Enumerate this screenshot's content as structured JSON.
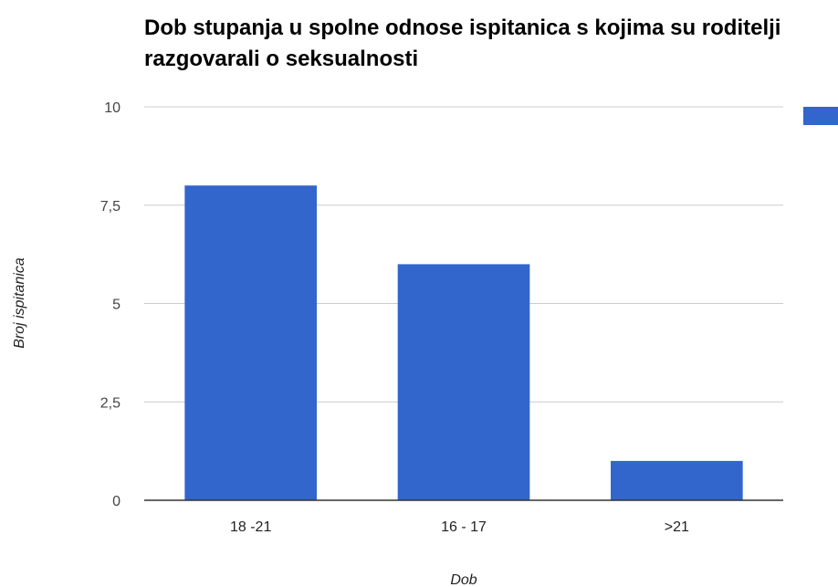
{
  "chart_data": {
    "type": "bar",
    "title": "Dob stupanja u spolne odnose ispitanica s kojima su roditelji razgovarali o seksualnosti",
    "xlabel": "Dob",
    "ylabel": "Broj ispitanica",
    "categories": [
      "18 -21",
      "16 - 17",
      ">21"
    ],
    "series": [
      {
        "values": [
          8,
          6,
          1
        ],
        "color": "#3366cc"
      }
    ],
    "ylim": [
      0,
      10
    ],
    "yticks": [
      0,
      2.5,
      5,
      7.5,
      10
    ],
    "ytick_labels": [
      "0",
      "2,5",
      "5",
      "7,5",
      "10"
    ],
    "grid": true,
    "legend": "right, partially cut off, no visible text"
  }
}
